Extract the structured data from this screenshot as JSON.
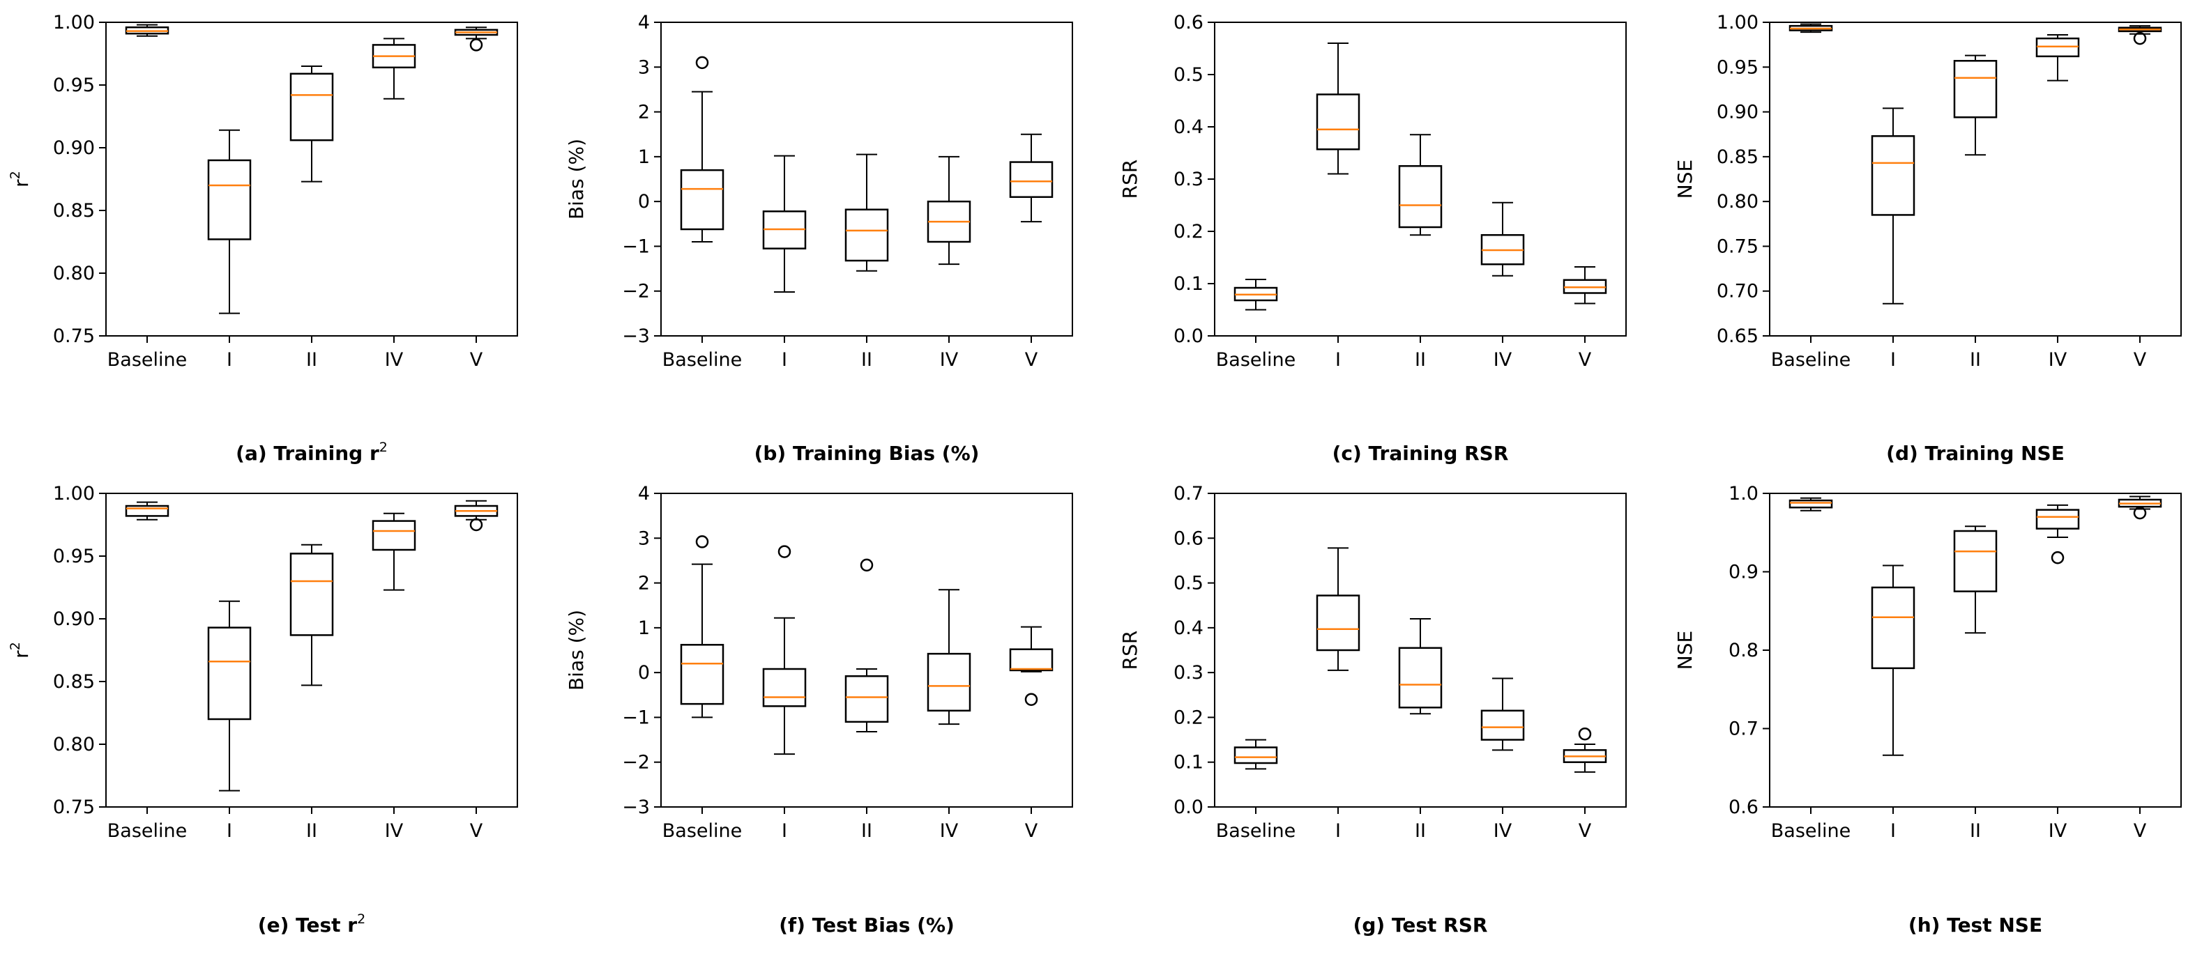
{
  "colors": {
    "median": "#ff7f0e",
    "box": "#000000",
    "background": "#ffffff"
  },
  "chart_data": [
    {
      "type": "box",
      "caption": "(a) Training r",
      "caption_sup": "2",
      "ylabel": "r",
      "ylabel_sup": "2",
      "categories": [
        "Baseline",
        "I",
        "II",
        "IV",
        "V"
      ],
      "ylim": [
        0.75,
        1.0
      ],
      "yticks": [
        0.75,
        0.8,
        0.85,
        0.9,
        0.95,
        1.0
      ],
      "ytick_labels": [
        "0.75",
        "0.80",
        "0.85",
        "0.90",
        "0.95",
        "1.00"
      ],
      "boxes": [
        {
          "whislo": 0.989,
          "q1": 0.991,
          "med": 0.993,
          "q3": 0.996,
          "whishi": 0.998,
          "fliers": []
        },
        {
          "whislo": 0.768,
          "q1": 0.827,
          "med": 0.87,
          "q3": 0.89,
          "whishi": 0.914,
          "fliers": []
        },
        {
          "whislo": 0.873,
          "q1": 0.906,
          "med": 0.942,
          "q3": 0.959,
          "whishi": 0.965,
          "fliers": []
        },
        {
          "whislo": 0.939,
          "q1": 0.964,
          "med": 0.973,
          "q3": 0.982,
          "whishi": 0.987,
          "fliers": []
        },
        {
          "whislo": 0.987,
          "q1": 0.99,
          "med": 0.992,
          "q3": 0.994,
          "whishi": 0.996,
          "fliers": [
            0.982
          ]
        }
      ]
    },
    {
      "type": "box",
      "caption": "(b) Training Bias (%)",
      "ylabel": "Bias (%)",
      "categories": [
        "Baseline",
        "I",
        "II",
        "IV",
        "V"
      ],
      "ylim": [
        -3,
        4
      ],
      "yticks": [
        -3,
        -2,
        -1,
        0,
        1,
        2,
        3,
        4
      ],
      "ytick_labels": [
        "−3",
        "−2",
        "−1",
        "0",
        "1",
        "2",
        "3",
        "4"
      ],
      "boxes": [
        {
          "whislo": -0.9,
          "q1": -0.62,
          "med": 0.28,
          "q3": 0.7,
          "whishi": 2.45,
          "fliers": [
            3.1
          ]
        },
        {
          "whislo": -2.02,
          "q1": -1.05,
          "med": -0.62,
          "q3": -0.22,
          "whishi": 1.02,
          "fliers": []
        },
        {
          "whislo": -1.55,
          "q1": -1.32,
          "med": -0.65,
          "q3": -0.18,
          "whishi": 1.05,
          "fliers": []
        },
        {
          "whislo": -1.4,
          "q1": -0.9,
          "med": -0.45,
          "q3": 0.0,
          "whishi": 1.0,
          "fliers": []
        },
        {
          "whislo": -0.45,
          "q1": 0.1,
          "med": 0.45,
          "q3": 0.88,
          "whishi": 1.5,
          "fliers": []
        }
      ]
    },
    {
      "type": "box",
      "caption": "(c) Training RSR",
      "ylabel": "RSR",
      "categories": [
        "Baseline",
        "I",
        "II",
        "IV",
        "V"
      ],
      "ylim": [
        0.0,
        0.6
      ],
      "yticks": [
        0.0,
        0.1,
        0.2,
        0.3,
        0.4,
        0.5,
        0.6
      ],
      "ytick_labels": [
        "0.0",
        "0.1",
        "0.2",
        "0.3",
        "0.4",
        "0.5",
        "0.6"
      ],
      "boxes": [
        {
          "whislo": 0.05,
          "q1": 0.068,
          "med": 0.079,
          "q3": 0.092,
          "whishi": 0.108,
          "fliers": []
        },
        {
          "whislo": 0.31,
          "q1": 0.357,
          "med": 0.395,
          "q3": 0.462,
          "whishi": 0.56,
          "fliers": []
        },
        {
          "whislo": 0.193,
          "q1": 0.208,
          "med": 0.25,
          "q3": 0.325,
          "whishi": 0.385,
          "fliers": []
        },
        {
          "whislo": 0.115,
          "q1": 0.137,
          "med": 0.164,
          "q3": 0.193,
          "whishi": 0.255,
          "fliers": []
        },
        {
          "whislo": 0.062,
          "q1": 0.082,
          "med": 0.093,
          "q3": 0.107,
          "whishi": 0.132,
          "fliers": []
        }
      ]
    },
    {
      "type": "box",
      "caption": "(d) Training NSE",
      "ylabel": "NSE",
      "categories": [
        "Baseline",
        "I",
        "II",
        "IV",
        "V"
      ],
      "ylim": [
        0.65,
        1.0
      ],
      "yticks": [
        0.65,
        0.7,
        0.75,
        0.8,
        0.85,
        0.9,
        0.95,
        1.0
      ],
      "ytick_labels": [
        "0.65",
        "0.70",
        "0.75",
        "0.80",
        "0.85",
        "0.90",
        "0.95",
        "1.00"
      ],
      "boxes": [
        {
          "whislo": 0.989,
          "q1": 0.991,
          "med": 0.993,
          "q3": 0.996,
          "whishi": 0.998,
          "fliers": []
        },
        {
          "whislo": 0.686,
          "q1": 0.785,
          "med": 0.843,
          "q3": 0.873,
          "whishi": 0.904,
          "fliers": []
        },
        {
          "whislo": 0.852,
          "q1": 0.894,
          "med": 0.938,
          "q3": 0.957,
          "whishi": 0.963,
          "fliers": []
        },
        {
          "whislo": 0.935,
          "q1": 0.962,
          "med": 0.973,
          "q3": 0.982,
          "whishi": 0.986,
          "fliers": []
        },
        {
          "whislo": 0.987,
          "q1": 0.99,
          "med": 0.992,
          "q3": 0.994,
          "whishi": 0.996,
          "fliers": [
            0.982
          ]
        }
      ]
    },
    {
      "type": "box",
      "caption": "(e) Test r",
      "caption_sup": "2",
      "ylabel": "r",
      "ylabel_sup": "2",
      "categories": [
        "Baseline",
        "I",
        "II",
        "IV",
        "V"
      ],
      "ylim": [
        0.75,
        1.0
      ],
      "yticks": [
        0.75,
        0.8,
        0.85,
        0.9,
        0.95,
        1.0
      ],
      "ytick_labels": [
        "0.75",
        "0.80",
        "0.85",
        "0.90",
        "0.95",
        "1.00"
      ],
      "boxes": [
        {
          "whislo": 0.979,
          "q1": 0.982,
          "med": 0.988,
          "q3": 0.99,
          "whishi": 0.993,
          "fliers": []
        },
        {
          "whislo": 0.763,
          "q1": 0.82,
          "med": 0.866,
          "q3": 0.893,
          "whishi": 0.914,
          "fliers": []
        },
        {
          "whislo": 0.847,
          "q1": 0.887,
          "med": 0.93,
          "q3": 0.952,
          "whishi": 0.959,
          "fliers": []
        },
        {
          "whislo": 0.923,
          "q1": 0.955,
          "med": 0.97,
          "q3": 0.978,
          "whishi": 0.984,
          "fliers": []
        },
        {
          "whislo": 0.979,
          "q1": 0.982,
          "med": 0.986,
          "q3": 0.99,
          "whishi": 0.994,
          "fliers": [
            0.975
          ]
        }
      ]
    },
    {
      "type": "box",
      "caption": "(f) Test Bias (%)",
      "ylabel": "Bias (%)",
      "categories": [
        "Baseline",
        "I",
        "II",
        "IV",
        "V"
      ],
      "ylim": [
        -3,
        4
      ],
      "yticks": [
        -3,
        -2,
        -1,
        0,
        1,
        2,
        3,
        4
      ],
      "ytick_labels": [
        "−3",
        "−2",
        "−1",
        "0",
        "1",
        "2",
        "3",
        "4"
      ],
      "boxes": [
        {
          "whislo": -1.0,
          "q1": -0.7,
          "med": 0.2,
          "q3": 0.62,
          "whishi": 2.42,
          "fliers": [
            2.92
          ]
        },
        {
          "whislo": -1.82,
          "q1": -0.75,
          "med": -0.55,
          "q3": 0.08,
          "whishi": 1.22,
          "fliers": [
            2.7
          ]
        },
        {
          "whislo": -1.32,
          "q1": -1.1,
          "med": -0.55,
          "q3": -0.08,
          "whishi": 0.08,
          "fliers": [
            2.4
          ]
        },
        {
          "whislo": -1.15,
          "q1": -0.85,
          "med": -0.3,
          "q3": 0.42,
          "whishi": 1.85,
          "fliers": []
        },
        {
          "whislo": 0.02,
          "q1": 0.05,
          "med": 0.08,
          "q3": 0.52,
          "whishi": 1.02,
          "fliers": [
            -0.6
          ]
        }
      ]
    },
    {
      "type": "box",
      "caption": "(g) Test RSR",
      "ylabel": "RSR",
      "categories": [
        "Baseline",
        "I",
        "II",
        "IV",
        "V"
      ],
      "ylim": [
        0.0,
        0.7
      ],
      "yticks": [
        0.0,
        0.1,
        0.2,
        0.3,
        0.4,
        0.5,
        0.6,
        0.7
      ],
      "ytick_labels": [
        "0.0",
        "0.1",
        "0.2",
        "0.3",
        "0.4",
        "0.5",
        "0.6",
        "0.7"
      ],
      "boxes": [
        {
          "whislo": 0.085,
          "q1": 0.098,
          "med": 0.111,
          "q3": 0.133,
          "whishi": 0.15,
          "fliers": []
        },
        {
          "whislo": 0.305,
          "q1": 0.35,
          "med": 0.397,
          "q3": 0.472,
          "whishi": 0.578,
          "fliers": []
        },
        {
          "whislo": 0.208,
          "q1": 0.222,
          "med": 0.273,
          "q3": 0.355,
          "whishi": 0.42,
          "fliers": []
        },
        {
          "whislo": 0.127,
          "q1": 0.15,
          "med": 0.178,
          "q3": 0.215,
          "whishi": 0.287,
          "fliers": []
        },
        {
          "whislo": 0.078,
          "q1": 0.1,
          "med": 0.113,
          "q3": 0.127,
          "whishi": 0.14,
          "fliers": [
            0.163
          ]
        }
      ]
    },
    {
      "type": "box",
      "caption": "(h) Test NSE",
      "ylabel": "NSE",
      "categories": [
        "Baseline",
        "I",
        "II",
        "IV",
        "V"
      ],
      "ylim": [
        0.6,
        1.0
      ],
      "yticks": [
        0.6,
        0.7,
        0.8,
        0.9,
        1.0
      ],
      "ytick_labels": [
        "0.6",
        "0.7",
        "0.8",
        "0.9",
        "1.0"
      ],
      "boxes": [
        {
          "whislo": 0.978,
          "q1": 0.982,
          "med": 0.988,
          "q3": 0.991,
          "whishi": 0.994,
          "fliers": []
        },
        {
          "whislo": 0.666,
          "q1": 0.777,
          "med": 0.842,
          "q3": 0.88,
          "whishi": 0.908,
          "fliers": []
        },
        {
          "whislo": 0.822,
          "q1": 0.875,
          "med": 0.926,
          "q3": 0.952,
          "whishi": 0.958,
          "fliers": []
        },
        {
          "whislo": 0.944,
          "q1": 0.955,
          "med": 0.97,
          "q3": 0.979,
          "whishi": 0.985,
          "fliers": [
            0.918
          ]
        },
        {
          "whislo": 0.98,
          "q1": 0.983,
          "med": 0.987,
          "q3": 0.992,
          "whishi": 0.996,
          "fliers": [
            0.975
          ]
        }
      ]
    }
  ]
}
